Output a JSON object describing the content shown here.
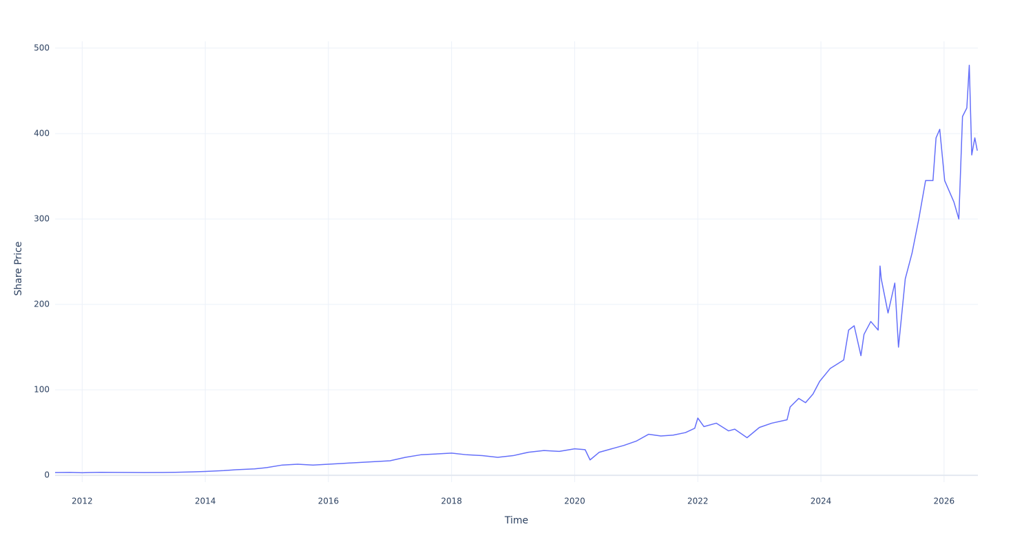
{
  "chart_data": {
    "type": "line",
    "x_label": "Time",
    "y_label": "Share Price",
    "x": [
      2011.56,
      2011.8,
      2012.0,
      2012.3,
      2012.5,
      2012.8,
      2013.0,
      2013.3,
      2013.5,
      2013.8,
      2014.0,
      2014.3,
      2014.5,
      2014.8,
      2015.0,
      2015.25,
      2015.5,
      2015.75,
      2016.0,
      2016.25,
      2016.5,
      2016.75,
      2017.0,
      2017.25,
      2017.5,
      2017.75,
      2018.0,
      2018.25,
      2018.5,
      2018.75,
      2019.0,
      2019.25,
      2019.5,
      2019.75,
      2020.0,
      2020.17,
      2020.25,
      2020.4,
      2020.6,
      2020.8,
      2021.0,
      2021.2,
      2021.4,
      2021.6,
      2021.8,
      2021.95,
      2022.0,
      2022.1,
      2022.3,
      2022.5,
      2022.6,
      2022.8,
      2023.0,
      2023.2,
      2023.45,
      2023.5,
      2023.64,
      2023.75,
      2023.87,
      2023.98,
      2024.15,
      2024.26,
      2024.37,
      2024.45,
      2024.54,
      2024.65,
      2024.7,
      2024.81,
      2024.93,
      2024.96,
      2024.98,
      2025.09,
      2025.2,
      2025.26,
      2025.37,
      2025.48,
      2025.59,
      2025.7,
      2025.82,
      2025.87,
      2025.93,
      2026.01,
      2026.1,
      2026.16,
      2026.24,
      2026.3,
      2026.37,
      2026.41,
      2026.45,
      2026.5,
      2026.54
    ],
    "series": [
      {
        "color": "#636efa",
        "values": [
          3.2,
          3.4,
          3.0,
          3.5,
          3.4,
          3.3,
          3.2,
          3.3,
          3.5,
          4.0,
          4.5,
          5.5,
          6.5,
          7.5,
          9,
          12,
          13,
          12,
          13,
          14,
          15,
          16,
          17,
          21,
          24,
          25,
          26,
          24,
          23,
          21,
          23,
          27,
          29,
          28,
          31,
          30,
          18,
          27,
          31,
          35,
          40,
          48,
          46,
          47,
          50,
          55,
          67,
          57,
          61,
          52,
          54,
          44,
          56,
          61,
          65,
          80,
          90,
          85,
          95,
          110,
          125,
          130,
          135,
          170,
          175,
          140,
          165,
          180,
          170,
          245,
          230,
          190,
          225,
          150,
          230,
          260,
          300,
          345,
          345,
          395,
          405,
          345,
          330,
          320,
          300,
          420,
          430,
          480,
          375,
          395,
          380
        ]
      }
    ],
    "xlim": [
      2011.56,
      2026.55
    ],
    "ylim": [
      -8,
      508
    ],
    "xticks": [
      2012,
      2014,
      2016,
      2018,
      2020,
      2022,
      2024,
      2026
    ],
    "yticks": [
      0,
      100,
      200,
      300,
      400,
      500
    ],
    "grid": true
  }
}
